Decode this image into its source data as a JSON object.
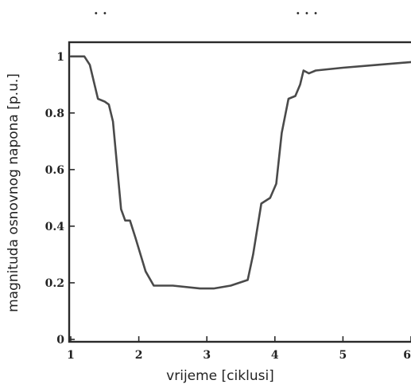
{
  "top_marks": {
    "left": "· ·",
    "right": "·  · ·"
  },
  "chart_data": {
    "type": "line",
    "xlabel": "vrijeme [ciklusi]",
    "ylabel": "magnituda osnovnog napona [p.u.]",
    "xlim": [
      1,
      6
    ],
    "ylim": [
      0,
      1.05
    ],
    "x_ticks": [
      "1",
      "2",
      "3",
      "4",
      "5",
      "6"
    ],
    "y_ticks": [
      "0",
      "0.2",
      "0.4",
      "0.6",
      "0.8",
      "1"
    ],
    "grid": false,
    "legend": "none",
    "series": [
      {
        "x": [
          1.0,
          1.2,
          1.28,
          1.4,
          1.5,
          1.56,
          1.62,
          1.74,
          1.8,
          1.87,
          1.95,
          2.1,
          2.22,
          2.5,
          2.9,
          3.1,
          3.35,
          3.6,
          3.68,
          3.8,
          3.93,
          4.02,
          4.1,
          4.2,
          4.3,
          4.37,
          4.42,
          4.5,
          4.6,
          5.0,
          5.5,
          6.0
        ],
        "y": [
          1.0,
          1.0,
          0.97,
          0.85,
          0.84,
          0.83,
          0.77,
          0.46,
          0.42,
          0.42,
          0.36,
          0.24,
          0.19,
          0.19,
          0.18,
          0.18,
          0.19,
          0.21,
          0.3,
          0.48,
          0.5,
          0.55,
          0.73,
          0.85,
          0.86,
          0.9,
          0.95,
          0.94,
          0.95,
          0.96,
          0.97,
          0.98
        ]
      }
    ]
  }
}
